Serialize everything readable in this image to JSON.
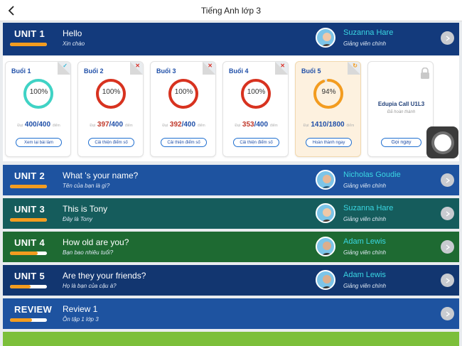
{
  "header": {
    "title": "Tiếng Anh lớp 3"
  },
  "units": [
    {
      "label": "UNIT 1",
      "title": "Hello",
      "subtitle": "Xin chào",
      "teacher": "Suzanna Hare",
      "role": "Giảng viên chính",
      "progress": 1.0
    },
    {
      "label": "UNIT 2",
      "title": "What 's your name?",
      "subtitle": "Tên của bạn là gì?",
      "teacher": "Nicholas Goudie",
      "role": "Giảng viên chính",
      "progress": 1.0
    },
    {
      "label": "UNIT 3",
      "title": "This is Tony",
      "subtitle": "Đây là Tony",
      "teacher": "Suzanna Hare",
      "role": "Giảng viên chính",
      "progress": 1.0
    },
    {
      "label": "UNIT 4",
      "title": "How old are you?",
      "subtitle": "Bạn bao nhiêu tuổi?",
      "teacher": "Adam Lewis",
      "role": "Giảng viên chính",
      "progress": 0.75
    },
    {
      "label": "UNIT 5",
      "title": "Are they your friends?",
      "subtitle": "Họ là bạn của cậu à?",
      "teacher": "Adam Lewis",
      "role": "Giảng viên chính",
      "progress": 0.55
    },
    {
      "label": "REVIEW",
      "title": "Review 1",
      "subtitle": "Ôn tập 1 lớp 3",
      "progress": 0.6
    }
  ],
  "lessons": [
    {
      "title": "Buổi 1",
      "percent_label": "100%",
      "percent": 100,
      "score": "400",
      "total": "/400",
      "pre": "Đạt",
      "post": "điểm",
      "button": "Xem lại bài làm",
      "ring_color": "#3fd3c5",
      "score_color": "#1f4fa8",
      "mark": "✓",
      "mark_color": "#35b7d6"
    },
    {
      "title": "Buổi 2",
      "percent_label": "100%",
      "percent": 100,
      "score": "397",
      "total": "/400",
      "pre": "Đạt",
      "post": "điểm",
      "button": "Cải thiện điểm số",
      "ring_color": "#d8321f",
      "score_color": "#c0392b",
      "mark": "✕",
      "mark_color": "#d9342b"
    },
    {
      "title": "Buổi 3",
      "percent_label": "100%",
      "percent": 100,
      "score": "392",
      "total": "/400",
      "pre": "Đạt",
      "post": "điểm",
      "button": "Cải thiện điểm số",
      "ring_color": "#d8321f",
      "score_color": "#c0392b",
      "mark": "✕",
      "mark_color": "#d9342b"
    },
    {
      "title": "Buổi 4",
      "percent_label": "100%",
      "percent": 100,
      "score": "353",
      "total": "/400",
      "pre": "Đạt",
      "post": "điểm",
      "button": "Cải thiện điểm số",
      "ring_color": "#d8321f",
      "score_color": "#c0392b",
      "mark": "✕",
      "mark_color": "#d9342b"
    },
    {
      "title": "Buổi 5",
      "percent_label": "94%",
      "percent": 94,
      "score": "1410",
      "total": "/1800",
      "pre": "Đạt",
      "post": "điểm",
      "button": "Hoàn thành ngay",
      "ring_color": "#f39c1f",
      "score_color": "#1f4fa8",
      "mark": "↻",
      "mark_color": "#f39c1f"
    }
  ],
  "call": {
    "title": "Edupia Call U1L3",
    "status": "Đã hoàn thành",
    "button": "Gọi ngay"
  },
  "colors": {
    "accent": "#f39c1f",
    "teacher_name": "#3ad6e2",
    "bottom_strip": "#7cbf3a"
  }
}
